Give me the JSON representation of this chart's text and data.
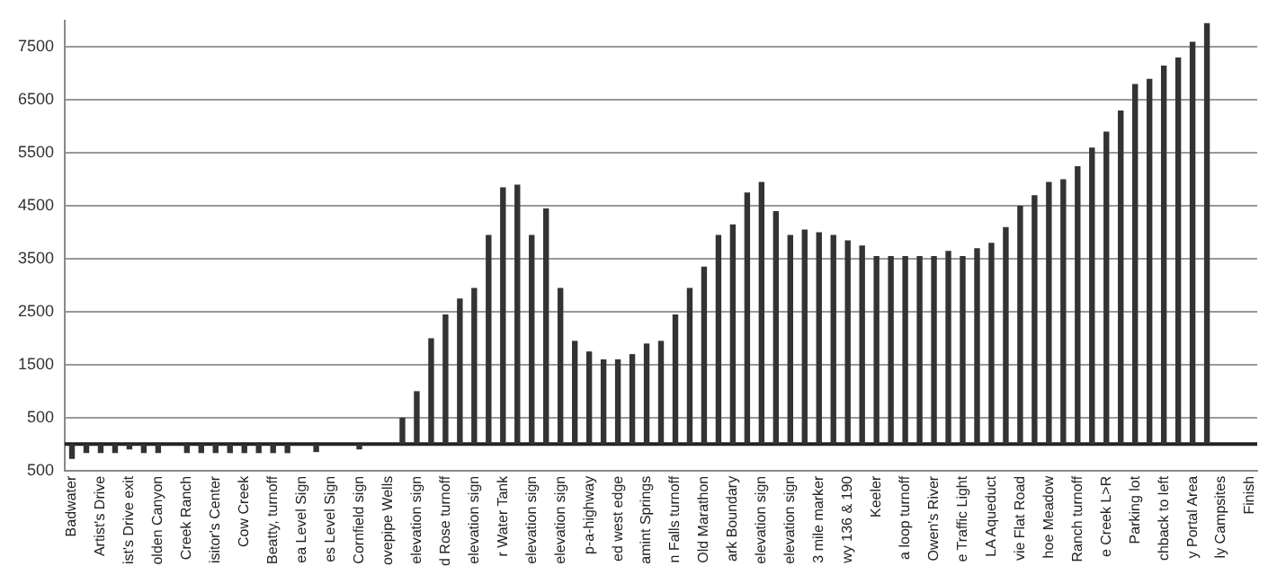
{
  "chart_data": {
    "type": "bar",
    "categories": [
      "Badwater",
      null,
      "Artist's Drive",
      null,
      "ist's Drive exit",
      null,
      "olden Canyon",
      null,
      "Creek Ranch",
      null,
      "isitor's Center",
      null,
      "Cow Creek",
      null,
      "Beatty, turnoff",
      null,
      "ea Level Sign",
      null,
      "es Level Sign",
      null,
      "Cornfield sign",
      null,
      "ovepipe Wells",
      null,
      "elevation sign",
      null,
      "d Rose turnoff",
      null,
      "elevation sign",
      null,
      "r Water Tank",
      null,
      "elevation sign",
      null,
      "elevation sign",
      null,
      "p-a-highway",
      null,
      "ed west edge",
      null,
      "amint Springs",
      null,
      "n Falls turnoff",
      null,
      "Old Marathon",
      null,
      "ark Boundary",
      null,
      "elevation sign",
      null,
      "elevation sign",
      null,
      "3 mile marker",
      null,
      "wy 136 & 190",
      null,
      "Keeler",
      null,
      "a loop turnoff",
      null,
      "Owen's River",
      null,
      "e Traffic Light",
      null,
      "LA Aqueduct",
      null,
      "vie Flat Road",
      null,
      "hoe Meadow",
      null,
      "Ranch turnoff",
      null,
      "e Creek L>R",
      null,
      "Parking lot",
      null,
      "chback to left",
      null,
      "y Portal Area",
      null,
      "ly Campsites",
      null,
      "Finish"
    ],
    "values": [
      -280,
      -170,
      -170,
      -170,
      -100,
      -170,
      -170,
      0,
      -170,
      -170,
      -170,
      -170,
      -170,
      -170,
      -170,
      -170,
      0,
      -150,
      0,
      0,
      -100,
      0,
      0,
      500,
      1000,
      2000,
      2450,
      2750,
      2950,
      3950,
      4850,
      4900,
      3950,
      4450,
      2950,
      1950,
      1750,
      1600,
      1600,
      1700,
      1900,
      1950,
      2450,
      2950,
      3350,
      3950,
      4150,
      4750,
      4950,
      4400,
      3950,
      4050,
      4000,
      3950,
      3850,
      3750,
      3550,
      3550,
      3550,
      3550,
      3550,
      3650,
      3550,
      3700,
      3800,
      4100,
      4500,
      4700,
      4950,
      5000,
      5250,
      5600,
      5900,
      6300,
      6800,
      6900,
      7150,
      7300,
      7600,
      7950,
      null,
      null,
      null
    ],
    "color": "#333333",
    "ylim": [
      -500,
      8000
    ],
    "yticks": [
      {
        "value": -500,
        "label": "500"
      },
      500,
      1500,
      2500,
      3500,
      4500,
      5500,
      6500,
      7500
    ],
    "ref_lines": [
      {
        "axis": "y",
        "value": 0,
        "color": "#222222"
      }
    ],
    "grid": "y",
    "legend": false
  }
}
